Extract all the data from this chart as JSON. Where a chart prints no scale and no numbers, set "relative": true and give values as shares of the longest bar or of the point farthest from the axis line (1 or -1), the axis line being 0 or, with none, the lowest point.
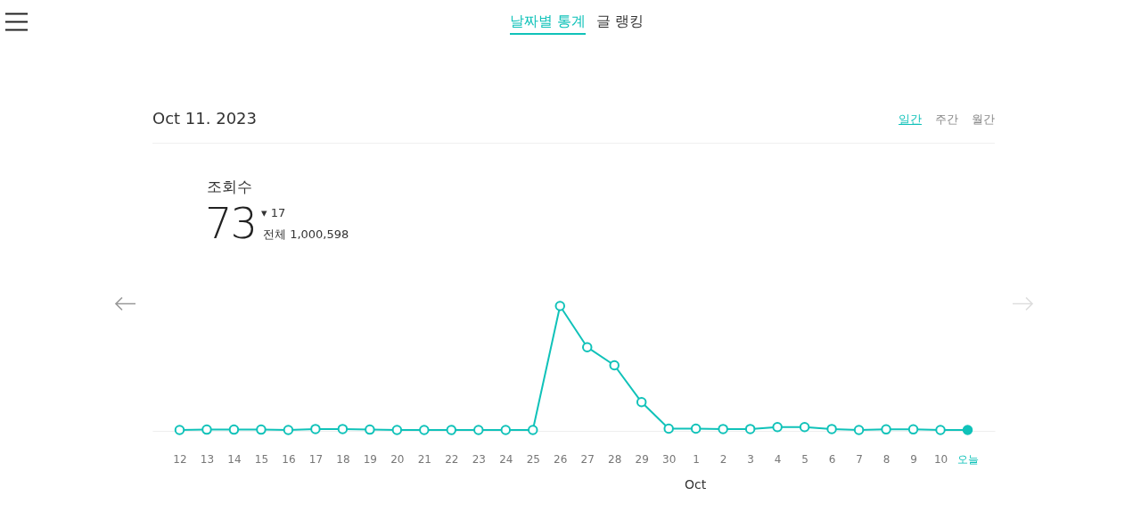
{
  "chart_data": {
    "type": "line",
    "title": "Oct 11. 2023",
    "subtitle": "조회수",
    "categories": [
      "12",
      "13",
      "14",
      "15",
      "16",
      "17",
      "18",
      "19",
      "20",
      "21",
      "22",
      "23",
      "24",
      "25",
      "26",
      "27",
      "28",
      "29",
      "30",
      "1",
      "2",
      "3",
      "4",
      "5",
      "6",
      "7",
      "8",
      "9",
      "10",
      "오늘"
    ],
    "series": [
      {
        "color": "#10c2b9",
        "values": [
          0.007,
          0.01,
          0.01,
          0.01,
          0.007,
          0.015,
          0.015,
          0.01,
          0.007,
          0.007,
          0.007,
          0.007,
          0.007,
          0.007,
          1,
          0.67,
          0.525,
          0.23,
          0.018,
          0.018,
          0.015,
          0.015,
          0.03,
          0.03,
          0.015,
          0.007,
          0.012,
          0.012,
          0.007,
          0.007
        ]
      }
    ],
    "relative": true,
    "marker": "circle",
    "line_style": "solid",
    "grid": false,
    "annotations": [
      "날짜별 통계",
      "글 랭킹",
      "일간",
      "주간",
      "월간",
      "73",
      "▾ 17",
      "전체 1,000,598",
      "Oct"
    ]
  }
}
